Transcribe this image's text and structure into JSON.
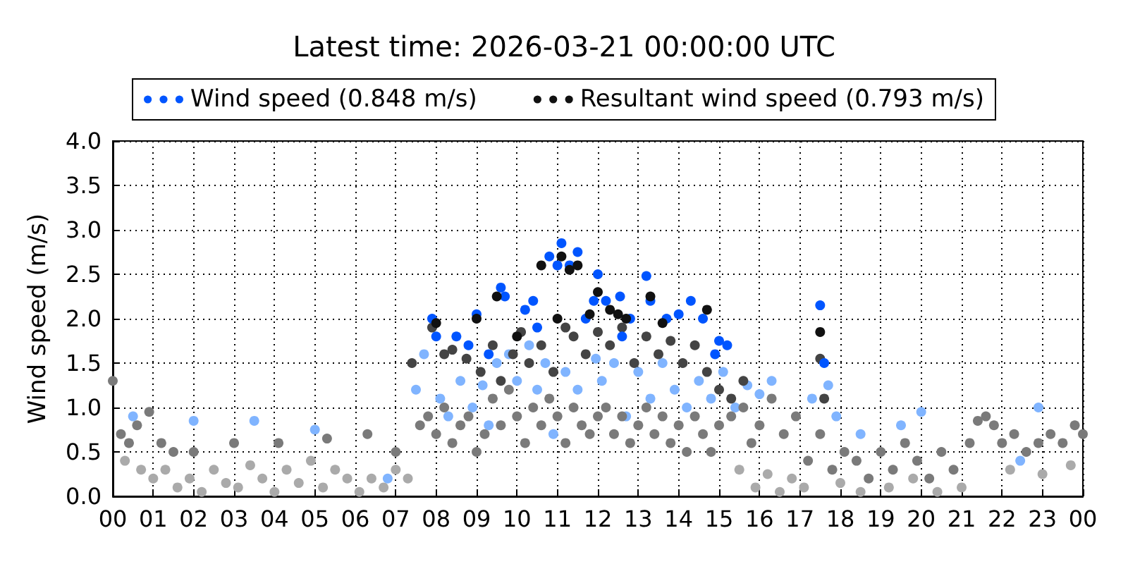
{
  "chart_data": {
    "type": "scatter",
    "title": "Latest time: 2026-03-21 00:00:00 UTC",
    "ylabel": "Wind speed (m/s)",
    "xlim": [
      0,
      24
    ],
    "xticks": [
      {
        "value": 0,
        "label": "00"
      },
      {
        "value": 1,
        "label": "01"
      },
      {
        "value": 2,
        "label": "02"
      },
      {
        "value": 3,
        "label": "03"
      },
      {
        "value": 4,
        "label": "04"
      },
      {
        "value": 5,
        "label": "05"
      },
      {
        "value": 6,
        "label": "06"
      },
      {
        "value": 7,
        "label": "07"
      },
      {
        "value": 8,
        "label": "08"
      },
      {
        "value": 9,
        "label": "09"
      },
      {
        "value": 10,
        "label": "10"
      },
      {
        "value": 11,
        "label": "11"
      },
      {
        "value": 12,
        "label": "12"
      },
      {
        "value": 13,
        "label": "13"
      },
      {
        "value": 14,
        "label": "14"
      },
      {
        "value": 15,
        "label": "15"
      },
      {
        "value": 16,
        "label": "16"
      },
      {
        "value": 17,
        "label": "17"
      },
      {
        "value": 18,
        "label": "18"
      },
      {
        "value": 19,
        "label": "19"
      },
      {
        "value": 20,
        "label": "20"
      },
      {
        "value": 21,
        "label": "21"
      },
      {
        "value": 22,
        "label": "22"
      },
      {
        "value": 23,
        "label": "23"
      },
      {
        "value": 24,
        "label": "00"
      }
    ],
    "ylim": [
      0,
      4
    ],
    "yticks": [
      {
        "value": 0,
        "label": "0.0"
      },
      0.5,
      {
        "value": 1,
        "label": "1.0"
      },
      1.5,
      {
        "value": 2,
        "label": "2.0"
      },
      2.5,
      {
        "value": 3,
        "label": "3.0"
      },
      3.5,
      {
        "value": 4,
        "label": "4.0"
      }
    ],
    "grid": true,
    "legend": "top",
    "marker": "circle",
    "series": [
      {
        "color": "#aaaaaa",
        "x": [
          0.3,
          0.7,
          1.0,
          1.3,
          1.6,
          1.9,
          2.2,
          2.5,
          2.8,
          3.1,
          3.4,
          3.7,
          4.0,
          4.3,
          4.6,
          4.9,
          5.2,
          5.5,
          5.8,
          6.1,
          6.4,
          6.7,
          7.0,
          7.3,
          15.5,
          15.9,
          16.2,
          16.5,
          16.8,
          17.1,
          18.0,
          18.5,
          19.2,
          19.8,
          20.4,
          21.0,
          22.2,
          23.0,
          23.7
        ],
        "values": [
          0.4,
          0.3,
          0.2,
          0.3,
          0.1,
          0.2,
          0.05,
          0.3,
          0.15,
          0.1,
          0.35,
          0.2,
          0.05,
          0.3,
          0.15,
          0.4,
          0.1,
          0.3,
          0.2,
          0.05,
          0.2,
          0.1,
          0.3,
          0.2,
          0.3,
          0.1,
          0.25,
          0.05,
          0.2,
          0.1,
          0.15,
          0.05,
          0.1,
          0.2,
          0.05,
          0.1,
          0.3,
          0.25,
          0.35
        ]
      },
      {
        "color": "#80b4ff",
        "x": [
          7.5,
          7.7,
          8.1,
          8.3,
          8.6,
          8.9,
          9.15,
          9.3,
          9.5,
          9.8,
          10.0,
          10.3,
          10.5,
          10.7,
          10.9,
          11.2,
          11.5,
          11.95,
          12.1,
          12.4,
          12.7,
          13.0,
          13.3,
          13.6,
          13.9,
          14.2,
          14.5,
          14.8,
          15.1,
          15.4,
          15.7,
          16.0,
          16.3,
          17.3,
          17.7,
          17.9,
          18.5,
          19.5,
          20.0,
          22.45,
          22.9,
          0.5,
          2.0,
          3.5,
          5.0,
          6.8
        ],
        "values": [
          1.2,
          1.6,
          1.1,
          0.9,
          1.3,
          1.0,
          1.25,
          0.8,
          1.5,
          1.6,
          1.3,
          1.7,
          1.2,
          1.5,
          0.7,
          1.4,
          1.2,
          1.55,
          1.3,
          1.5,
          0.9,
          1.4,
          1.1,
          1.5,
          1.2,
          1.0,
          1.3,
          1.1,
          1.4,
          1.0,
          1.25,
          1.15,
          1.3,
          1.1,
          1.25,
          0.9,
          0.7,
          0.8,
          0.95,
          0.4,
          1.0,
          0.9,
          0.85,
          0.85,
          0.75,
          0.2
        ]
      },
      {
        "color": "#7a7a7a",
        "x": [
          7.6,
          7.8,
          8.0,
          8.2,
          8.4,
          8.6,
          8.8,
          9.0,
          9.2,
          9.4,
          9.6,
          9.8,
          10.0,
          10.2,
          10.4,
          10.6,
          10.8,
          11.0,
          11.2,
          11.4,
          11.6,
          11.8,
          12.0,
          12.2,
          12.4,
          12.6,
          12.8,
          13.0,
          13.2,
          13.4,
          13.6,
          13.8,
          14.0,
          14.2,
          14.4,
          14.6,
          14.8,
          15.0,
          15.3,
          15.6,
          15.8,
          16.0,
          16.3,
          16.6,
          16.9,
          17.2,
          17.5,
          17.8,
          18.1,
          18.4,
          18.7,
          19.0,
          19.3,
          19.6,
          19.9,
          20.2,
          20.5,
          20.8,
          21.2,
          21.4,
          21.6,
          21.8,
          22.0,
          22.3,
          22.6,
          22.9,
          23.2,
          23.5,
          23.8,
          24.0,
          0.0,
          0.2,
          0.4,
          0.6,
          0.9,
          1.2,
          1.5,
          2.0,
          3.0,
          4.1,
          5.3,
          6.3,
          7.0
        ],
        "values": [
          0.8,
          0.9,
          0.7,
          1.0,
          0.6,
          0.8,
          0.9,
          0.5,
          0.7,
          1.1,
          0.8,
          1.2,
          0.9,
          0.6,
          1.0,
          0.8,
          1.1,
          0.9,
          0.6,
          1.0,
          0.8,
          0.7,
          0.9,
          1.0,
          0.7,
          0.9,
          0.6,
          0.8,
          1.0,
          0.7,
          0.9,
          0.6,
          0.8,
          0.5,
          0.9,
          0.7,
          0.5,
          0.8,
          0.9,
          1.0,
          0.6,
          0.8,
          1.1,
          0.7,
          0.9,
          0.4,
          0.7,
          0.3,
          0.5,
          0.4,
          0.2,
          0.5,
          0.3,
          0.6,
          0.4,
          0.2,
          0.5,
          0.3,
          0.6,
          0.85,
          0.9,
          0.8,
          0.6,
          0.7,
          0.5,
          0.6,
          0.7,
          0.6,
          0.8,
          0.7,
          1.3,
          0.7,
          0.6,
          0.8,
          0.95,
          0.6,
          0.5,
          0.5,
          0.6,
          0.6,
          0.65,
          0.7,
          0.5
        ]
      },
      {
        "color": "#444444",
        "x": [
          7.4,
          7.9,
          8.2,
          8.4,
          8.75,
          9.1,
          9.4,
          9.6,
          9.9,
          10.1,
          10.3,
          10.6,
          10.9,
          11.2,
          11.4,
          11.7,
          12.0,
          12.3,
          12.6,
          12.9,
          13.2,
          13.5,
          13.8,
          14.1,
          14.4,
          14.7,
          15.0,
          15.3,
          15.6,
          17.5,
          17.6
        ],
        "values": [
          1.5,
          1.9,
          1.6,
          1.65,
          1.55,
          1.4,
          1.7,
          1.3,
          1.6,
          1.85,
          1.5,
          1.7,
          1.4,
          1.9,
          1.8,
          1.6,
          1.85,
          1.7,
          1.9,
          1.5,
          1.8,
          1.6,
          1.75,
          1.5,
          1.7,
          1.4,
          1.2,
          1.1,
          1.3,
          1.55,
          1.1
        ]
      },
      {
        "name": "Wind speed (0.848 m/s)",
        "color": "#0055ff",
        "x": [
          7.9,
          8.0,
          8.5,
          9.0,
          9.3,
          9.6,
          9.7,
          10.2,
          10.4,
          10.8,
          11.0,
          11.1,
          11.3,
          11.5,
          11.7,
          12.0,
          12.2,
          12.55,
          12.8,
          13.2,
          13.3,
          13.7,
          14.0,
          14.3,
          14.6,
          15.0,
          15.2,
          17.5,
          17.6,
          10.5,
          11.9,
          12.6,
          8.8,
          14.9
        ],
        "values": [
          2.0,
          1.8,
          1.8,
          2.05,
          1.6,
          2.35,
          2.25,
          2.1,
          2.2,
          2.7,
          2.6,
          2.85,
          2.6,
          2.75,
          2.0,
          2.5,
          2.2,
          2.25,
          2.0,
          2.48,
          2.2,
          2.0,
          2.05,
          2.2,
          2.0,
          1.75,
          1.7,
          2.15,
          1.5,
          1.9,
          2.2,
          1.8,
          1.7,
          1.6
        ]
      },
      {
        "name": "Resultant wind speed (0.793 m/s)",
        "color": "#111111",
        "x": [
          10.6,
          11.1,
          11.3,
          11.5,
          11.0,
          9.5,
          12.0,
          12.3,
          12.7,
          13.3,
          13.6,
          14.7,
          17.5,
          9.0,
          8.0,
          10.0,
          11.8,
          12.5
        ],
        "values": [
          2.6,
          2.7,
          2.55,
          2.6,
          2.0,
          2.25,
          2.3,
          2.1,
          2.0,
          2.25,
          1.95,
          2.1,
          1.85,
          2.0,
          1.95,
          1.8,
          2.05,
          2.05
        ]
      }
    ]
  }
}
